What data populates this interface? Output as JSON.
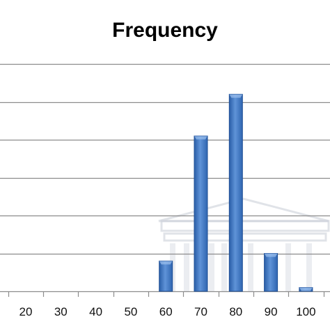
{
  "chart_data": {
    "type": "bar",
    "title": "Frequency",
    "categories": [
      "20",
      "30",
      "40",
      "50",
      "60",
      "70",
      "80",
      "90",
      "100"
    ],
    "values": [
      0,
      0,
      0,
      0,
      8,
      41,
      52,
      10,
      1
    ],
    "ylim": [
      0,
      60
    ],
    "grid": true,
    "bar_color": "#3f78c6",
    "bar_edge_color": "#1f4f96"
  }
}
